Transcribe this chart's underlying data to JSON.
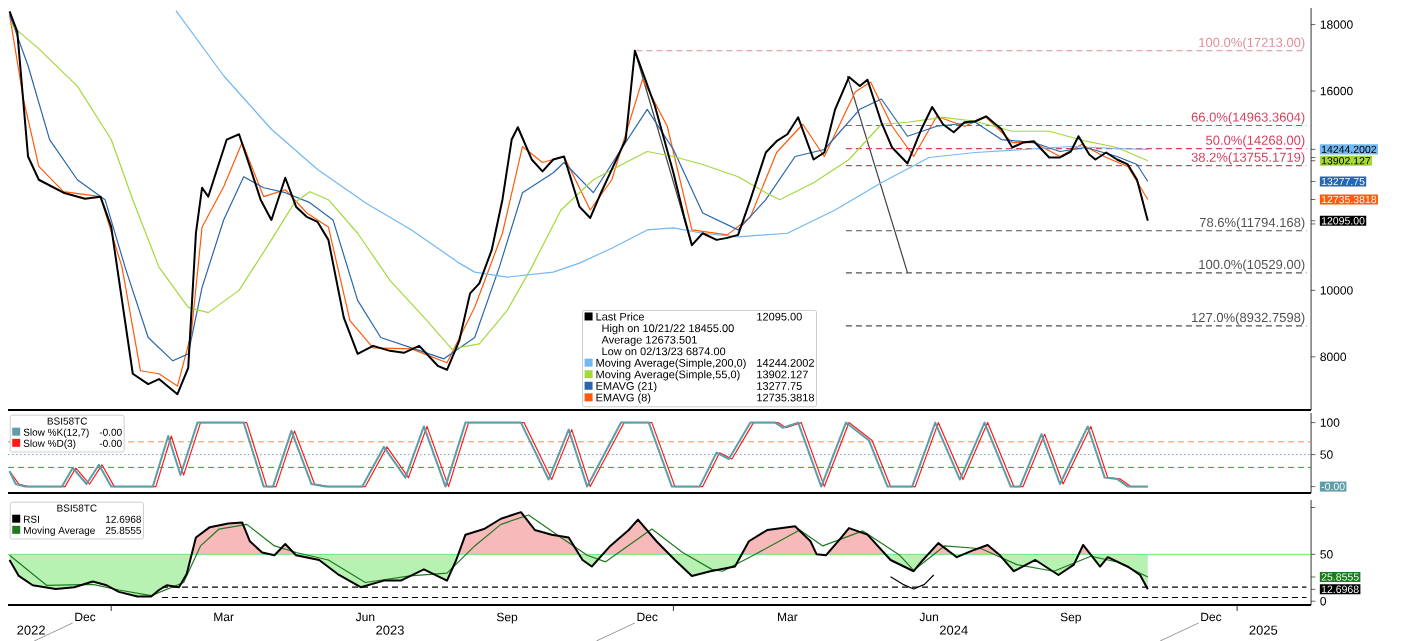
{
  "chart_data": [
    {
      "type": "line",
      "xlim": [
        "2022-10-26",
        "2025-02-18"
      ],
      "ylim": [
        6400,
        18500
      ],
      "tick_labels": "y",
      "legend": "bottom",
      "yticks": [
        8000,
        10000,
        {
          "value": 12000,
          "label": null
        },
        {
          "value": 12095,
          "label": "12095.00"
        },
        {
          "value": 12735.3818,
          "label": "12735.3818"
        },
        {
          "value": 13277.75,
          "label": "13277.75"
        },
        {
          "value": 13902.127,
          "label": "13902.127"
        },
        {
          "value": 14000,
          "label": null
        },
        {
          "value": 14244.2002,
          "label": "14244.2002"
        },
        16000,
        18000
      ],
      "annotations": [
        "High on 10/21/22 18455.00",
        "Average 12673.501",
        "Low on 02/13/23 6874.00",
        {
          "text": "100.0%(17213.00)",
          "x": "2025-02-15",
          "y": 17213
        },
        {
          "text": "66.0%(14963.3604)",
          "x": "2025-02-15",
          "y": 14963.3604
        },
        {
          "text": "50.0%(14268.00)",
          "x": "2025-02-15",
          "y": 14268
        },
        {
          "text": "38.2%(13755.1719)",
          "x": "2025-02-15",
          "y": 13755.1719
        },
        {
          "text": "78.6%(11794.168)",
          "x": "2025-02-15",
          "y": 11794.168
        },
        {
          "text": "100.0%(10529.00)",
          "x": "2025-02-15",
          "y": 10529
        },
        {
          "text": "127.0%(8932.7598)",
          "x": "2025-02-15",
          "y": 8932.7598
        }
      ],
      "series": [
        {
          "name": "Last Price",
          "color": "#000000",
          "x": [
            "2022-10-27",
            "2022-11-01",
            "2022-11-08",
            "2022-11-15",
            "2022-12-01",
            "2022-12-15",
            "2022-12-25",
            "2023-01-01",
            "2023-01-08",
            "2023-01-15",
            "2023-01-25",
            "2023-02-01",
            "2023-02-13",
            "2023-02-20",
            "2023-02-25",
            "2023-03-01",
            "2023-03-05",
            "2023-03-10",
            "2023-03-17",
            "2023-03-25",
            "2023-04-01",
            "2023-04-08",
            "2023-04-15",
            "2023-04-24",
            "2023-05-01",
            "2023-05-08",
            "2023-05-15",
            "2023-05-22",
            "2023-06-01",
            "2023-06-10",
            "2023-06-20",
            "2023-07-01",
            "2023-07-10",
            "2023-07-20",
            "2023-08-01",
            "2023-08-07",
            "2023-08-15",
            "2023-08-22",
            "2023-08-28",
            "2023-09-05",
            "2023-09-12",
            "2023-09-18",
            "2023-09-22",
            "2023-10-01",
            "2023-10-08",
            "2023-10-15",
            "2023-10-22",
            "2023-11-01",
            "2023-11-08",
            "2023-11-15",
            "2023-11-22",
            "2023-12-01",
            "2023-12-07",
            "2023-12-12",
            "2023-12-20",
            "2024-01-01",
            "2024-01-08",
            "2024-01-13",
            "2024-01-20",
            "2024-01-29",
            "2024-02-05",
            "2024-02-12",
            "2024-02-20",
            "2024-03-01",
            "2024-03-08",
            "2024-03-15",
            "2024-03-22",
            "2024-04-01",
            "2024-04-08",
            "2024-04-15",
            "2024-04-24",
            "2024-05-01",
            "2024-05-06",
            "2024-05-15",
            "2024-05-22",
            "2024-06-01",
            "2024-06-10",
            "2024-06-17",
            "2024-06-24",
            "2024-07-01",
            "2024-07-08",
            "2024-07-15",
            "2024-07-22",
            "2024-08-01",
            "2024-08-08",
            "2024-08-15",
            "2024-08-22",
            "2024-09-01",
            "2024-09-08",
            "2024-09-15",
            "2024-09-20",
            "2024-09-27",
            "2024-10-01",
            "2024-10-08",
            "2024-10-15",
            "2024-10-22",
            "2024-10-28",
            "2024-11-04"
          ],
          "values": [
            18400,
            17790,
            14030,
            13330,
            12940,
            12760,
            12820,
            11910,
            9700,
            7490,
            7180,
            7330,
            6874,
            7670,
            11720,
            13090,
            12820,
            13540,
            14540,
            14700,
            13730,
            12730,
            12120,
            13390,
            12520,
            12210,
            12060,
            11520,
            9180,
            8090,
            8330,
            8180,
            8120,
            8330,
            7730,
            7610,
            8490,
            9910,
            10210,
            11210,
            12730,
            14540,
            14910,
            13940,
            13580,
            13940,
            14030,
            12520,
            12180,
            12940,
            13640,
            14540,
            17213,
            16570,
            15550,
            13540,
            12210,
            11360,
            11720,
            11520,
            11580,
            11670,
            12730,
            14150,
            14490,
            14700,
            15210,
            13940,
            14150,
            15450,
            16420,
            16150,
            16340,
            15060,
            14300,
            13820,
            14850,
            15520,
            15000,
            14760,
            15060,
            15090,
            15240,
            14850,
            14300,
            14450,
            14490,
            14000,
            14000,
            14180,
            14640,
            14090,
            13940,
            14150,
            13940,
            13790,
            13330,
            12095
          ]
        },
        {
          "name": "Moving Average(Simple,200,0)",
          "color": "#72b8f2",
          "x": [
            "2023-02-12",
            "2023-03-15",
            "2023-04-15",
            "2023-05-15",
            "2023-06-15",
            "2023-07-15",
            "2023-08-15",
            "2023-08-25",
            "2023-09-15",
            "2023-10-15",
            "2023-11-01",
            "2023-11-22",
            "2023-12-15",
            "2024-01-01",
            "2024-01-20",
            "2024-02-12",
            "2024-03-15",
            "2024-04-15",
            "2024-05-15",
            "2024-06-15",
            "2024-07-15",
            "2024-08-15",
            "2024-09-15",
            "2024-10-15",
            "2024-11-04"
          ],
          "values": [
            18420,
            16460,
            14850,
            13640,
            12640,
            11820,
            10820,
            10550,
            10400,
            10550,
            10820,
            11270,
            11820,
            11880,
            11720,
            11610,
            11720,
            12420,
            13240,
            14000,
            14150,
            14240,
            14330,
            14270,
            14244.2002
          ]
        },
        {
          "name": "Moving Average(Simple,55,0)",
          "color": "#a3d93b",
          "x": [
            "2022-10-27",
            "2022-11-15",
            "2022-12-10",
            "2023-01-01",
            "2023-01-15",
            "2023-02-01",
            "2023-02-20",
            "2023-03-05",
            "2023-03-25",
            "2023-04-15",
            "2023-04-30",
            "2023-05-10",
            "2023-05-22",
            "2023-06-10",
            "2023-07-01",
            "2023-07-25",
            "2023-08-10",
            "2023-08-28",
            "2023-09-15",
            "2023-10-01",
            "2023-10-20",
            "2023-11-10",
            "2023-12-01",
            "2023-12-15",
            "2024-01-01",
            "2024-01-20",
            "2024-02-12",
            "2024-03-01",
            "2024-03-10",
            "2024-04-01",
            "2024-04-24",
            "2024-05-15",
            "2024-06-01",
            "2024-06-24",
            "2024-07-15",
            "2024-08-08",
            "2024-09-01",
            "2024-09-25",
            "2024-10-15",
            "2024-11-04"
          ],
          "values": [
            18030,
            17270,
            16150,
            14540,
            12730,
            10700,
            9490,
            9330,
            10000,
            11520,
            12640,
            12970,
            12730,
            11720,
            10300,
            9090,
            8240,
            8390,
            9390,
            10700,
            12420,
            13330,
            13850,
            14180,
            14030,
            13790,
            13420,
            12940,
            12730,
            13240,
            13940,
            15000,
            15060,
            15210,
            15090,
            14790,
            14790,
            14490,
            14300,
            13902.127
          ]
        },
        {
          "name": "EMAVG (21)",
          "color": "#2a66ad",
          "x": [
            "2022-10-27",
            "2022-11-08",
            "2022-11-22",
            "2022-12-10",
            "2022-12-28",
            "2023-01-10",
            "2023-01-25",
            "2023-02-10",
            "2023-02-20",
            "2023-03-01",
            "2023-03-15",
            "2023-03-28",
            "2023-04-10",
            "2023-04-24",
            "2023-05-10",
            "2023-05-25",
            "2023-06-10",
            "2023-06-25",
            "2023-07-15",
            "2023-08-05",
            "2023-08-25",
            "2023-09-10",
            "2023-09-25",
            "2023-10-15",
            "2023-10-22",
            "2023-11-10",
            "2023-11-28",
            "2023-12-15",
            "2024-01-01",
            "2024-01-20",
            "2024-02-12",
            "2024-03-01",
            "2024-03-20",
            "2024-04-08",
            "2024-05-01",
            "2024-05-15",
            "2024-06-01",
            "2024-06-20",
            "2024-07-15",
            "2024-08-01",
            "2024-08-22",
            "2024-09-08",
            "2024-09-25",
            "2024-10-15",
            "2024-10-28",
            "2024-11-04"
          ],
          "values": [
            18300,
            16760,
            14540,
            13330,
            12730,
            10700,
            8580,
            7880,
            8090,
            10090,
            12120,
            13420,
            13090,
            12940,
            12640,
            12120,
            9700,
            8580,
            8270,
            7940,
            8580,
            10700,
            12940,
            13540,
            13850,
            12940,
            14240,
            15450,
            14240,
            12330,
            11820,
            12730,
            14030,
            14240,
            15450,
            15760,
            14640,
            14940,
            15060,
            14540,
            14450,
            14180,
            14300,
            14030,
            13790,
            13277.75
          ]
        },
        {
          "name": "EMAVG (8)",
          "color": "#ff5a0a",
          "x": [
            "2022-10-27",
            "2022-11-05",
            "2022-11-15",
            "2022-12-01",
            "2022-12-25",
            "2023-01-08",
            "2023-01-20",
            "2023-02-01",
            "2023-02-13",
            "2023-02-22",
            "2023-03-01",
            "2023-03-15",
            "2023-03-27",
            "2023-04-10",
            "2023-04-24",
            "2023-05-08",
            "2023-05-22",
            "2023-06-05",
            "2023-06-20",
            "2023-07-15",
            "2023-08-07",
            "2023-08-25",
            "2023-09-12",
            "2023-09-25",
            "2023-10-08",
            "2023-10-22",
            "2023-11-08",
            "2023-11-22",
            "2023-12-12",
            "2023-12-28",
            "2024-01-13",
            "2024-02-05",
            "2024-02-20",
            "2024-03-08",
            "2024-03-25",
            "2024-04-08",
            "2024-04-28",
            "2024-05-08",
            "2024-05-22",
            "2024-06-05",
            "2024-06-20",
            "2024-07-08",
            "2024-07-22",
            "2024-08-08",
            "2024-08-22",
            "2024-09-08",
            "2024-09-22",
            "2024-10-08",
            "2024-10-22",
            "2024-11-04"
          ],
          "values": [
            18300,
            15760,
            13730,
            12970,
            12820,
            10700,
            7580,
            7490,
            7120,
            8700,
            11910,
            13120,
            14450,
            12820,
            13030,
            12330,
            11910,
            9090,
            8270,
            8240,
            7820,
            9490,
            11720,
            14330,
            13850,
            14030,
            12420,
            13330,
            16360,
            14940,
            11820,
            11670,
            12210,
            14150,
            15000,
            14030,
            15970,
            16270,
            14940,
            14030,
            15240,
            14940,
            15210,
            14450,
            14450,
            14030,
            14390,
            14000,
            13730,
            12735.3818
          ]
        },
        {
          "type": "line",
          "color": "#e08a96",
          "line_style": "dashed",
          "x": [
            "2023-12-08",
            "2025-02-15"
          ],
          "values": [
            17213,
            17213
          ]
        },
        {
          "type": "line",
          "color": "#d6405c",
          "line_style": "dashed",
          "x": [
            "2024-04-22",
            "2025-02-15"
          ],
          "values": [
            14963.3604,
            14963.3604
          ]
        },
        {
          "type": "line",
          "color": "#d6405c",
          "line_style": "dashed",
          "x": [
            "2024-04-22",
            "2025-02-15"
          ],
          "values": [
            14268,
            14268
          ]
        },
        {
          "type": "line",
          "color": "#d6405c",
          "line_style": "dashed",
          "x": [
            "2024-04-22",
            "2025-02-15"
          ],
          "values": [
            13755.1719,
            13755.1719
          ]
        },
        {
          "type": "line",
          "color": "#505050",
          "line_style": "dashed",
          "x": [
            "2024-04-22",
            "2025-02-15"
          ],
          "values": [
            11794.168,
            11794.168
          ]
        },
        {
          "type": "line",
          "color": "#505050",
          "line_style": "dashed",
          "x": [
            "2024-04-22",
            "2025-02-15"
          ],
          "values": [
            10529,
            10529
          ]
        },
        {
          "type": "line",
          "color": "#505050",
          "line_style": "dashed",
          "x": [
            "2024-04-22",
            "2025-02-15"
          ],
          "values": [
            8932.7598,
            8932.7598
          ]
        },
        {
          "type": "line",
          "color": "#404040",
          "x": [
            "2023-12-07",
            "2024-01-13"
          ],
          "values": [
            17213,
            11360
          ]
        },
        {
          "type": "line",
          "color": "#404040",
          "x": [
            "2024-04-23",
            "2024-06-01"
          ],
          "values": [
            16450,
            10529
          ]
        }
      ]
    },
    {
      "type": "line",
      "xlim": [
        "2022-10-26",
        "2025-02-18"
      ],
      "ylim": [
        -10,
        115
      ],
      "tick_labels": "y",
      "legend": "top left",
      "legend_title": "BSI58TC",
      "yticks": [
        {
          "value": 0,
          "label": "-0.00"
        },
        50,
        100
      ],
      "ref_lines": [
        {
          "axis": "y",
          "value": 70,
          "color": "#f28c5a",
          "line_style": "dashed"
        },
        {
          "axis": "y",
          "value": 50,
          "color": "#6aa8c0",
          "line_style": "dotted"
        },
        {
          "axis": "y",
          "value": 30,
          "color": "#2ca02c",
          "line_style": "dashed"
        }
      ],
      "series": [
        {
          "name": "Slow %K(12,7)",
          "color": "#5f9ea8",
          "x": [
            "2022-10-27",
            "2022-10-31",
            "2022-11-06",
            "2022-11-30",
            "2022-12-07",
            "2022-12-16",
            "2022-12-24",
            "2023-01-01",
            "2023-01-28",
            "2023-02-07",
            "2023-02-15",
            "2023-02-26",
            "2023-03-28",
            "2023-04-10",
            "2023-04-16",
            "2023-04-28",
            "2023-05-11",
            "2023-05-20",
            "2023-06-13",
            "2023-06-27",
            "2023-07-11",
            "2023-07-23",
            "2023-08-06",
            "2023-08-19",
            "2023-09-24",
            "2023-10-12",
            "2023-10-25",
            "2023-11-06",
            "2023-11-28",
            "2023-12-16",
            "2023-12-31",
            "2024-01-18",
            "2024-01-29",
            "2024-02-06",
            "2024-02-20",
            "2024-03-07",
            "2024-03-12",
            "2024-03-22",
            "2024-04-06",
            "2024-04-22",
            "2024-05-07",
            "2024-05-19",
            "2024-06-04",
            "2024-06-19",
            "2024-07-05",
            "2024-07-21",
            "2024-08-07",
            "2024-08-13",
            "2024-08-27",
            "2024-09-08",
            "2024-09-26",
            "2024-10-07",
            "2024-10-15",
            "2024-10-22",
            "2024-11-04"
          ],
          "values": [
            24,
            4,
            0,
            0,
            29,
            4,
            34,
            0,
            0,
            79,
            18,
            100,
            100,
            0,
            0,
            87,
            4,
            0,
            0,
            62,
            14,
            94,
            0,
            100,
            100,
            11,
            89,
            0,
            100,
            100,
            0,
            0,
            53,
            43,
            100,
            100,
            92,
            100,
            0,
            100,
            72,
            0,
            0,
            100,
            11,
            100,
            0,
            0,
            82,
            4,
            94,
            14,
            12,
            0,
            0
          ]
        },
        {
          "name": "Slow %D(3)",
          "color": "#ff1a1a",
          "x": [
            "2022-10-27",
            "2022-11-02",
            "2022-11-08",
            "2022-12-02",
            "2022-12-09",
            "2022-12-18",
            "2022-12-26",
            "2023-01-03",
            "2023-01-30",
            "2023-02-09",
            "2023-02-17",
            "2023-02-28",
            "2023-03-30",
            "2023-04-12",
            "2023-04-18",
            "2023-04-30",
            "2023-05-13",
            "2023-05-22",
            "2023-06-15",
            "2023-06-29",
            "2023-07-13",
            "2023-07-25",
            "2023-08-08",
            "2023-08-21",
            "2023-09-26",
            "2023-10-14",
            "2023-10-27",
            "2023-11-08",
            "2023-11-30",
            "2023-12-18",
            "2024-01-02",
            "2024-01-20",
            "2024-01-31",
            "2024-02-08",
            "2024-02-22",
            "2024-03-09",
            "2024-03-14",
            "2024-03-24",
            "2024-04-08",
            "2024-04-24",
            "2024-05-09",
            "2024-05-21",
            "2024-06-06",
            "2024-06-21",
            "2024-07-07",
            "2024-07-23",
            "2024-08-09",
            "2024-08-15",
            "2024-08-29",
            "2024-09-10",
            "2024-09-28",
            "2024-10-09",
            "2024-10-17",
            "2024-10-24",
            "2024-11-04"
          ],
          "values": [
            24,
            4,
            0,
            0,
            29,
            4,
            34,
            0,
            0,
            79,
            18,
            100,
            100,
            0,
            0,
            87,
            4,
            0,
            0,
            62,
            14,
            94,
            0,
            100,
            100,
            11,
            89,
            0,
            100,
            100,
            0,
            0,
            53,
            43,
            100,
            100,
            92,
            100,
            0,
            100,
            72,
            0,
            0,
            100,
            11,
            100,
            0,
            0,
            82,
            4,
            94,
            14,
            12,
            0,
            0
          ]
        }
      ]
    },
    {
      "type": "line",
      "xlim": [
        "2022-10-26",
        "2025-02-18"
      ],
      "ylim": [
        -4,
        108
      ],
      "legend": "top left",
      "legend_title": "BSI58TC",
      "yticks": [
        0,
        {
          "value": 12.6968,
          "label": "12.6968"
        },
        {
          "value": 25.8555,
          "label": "25.8555"
        },
        50,
        {
          "value": 100,
          "label": null
        }
      ],
      "xticks": [
        {
          "value": "2022-12-15",
          "label": "Dec"
        },
        {
          "value": "2023-03-15",
          "label": "Mar"
        },
        {
          "value": "2023-06-15",
          "label": "Jun"
        },
        {
          "value": "2023-09-15",
          "label": "Sep"
        },
        {
          "value": "2023-12-15",
          "label": "Dec"
        },
        {
          "value": "2024-03-15",
          "label": "Mar"
        },
        {
          "value": "2024-06-15",
          "label": "Jun"
        },
        {
          "value": "2024-09-15",
          "label": "Sep"
        },
        {
          "value": "2024-12-15",
          "label": "Dec"
        }
      ],
      "x2lim": [
        "2022-10-26",
        "2025-02-18"
      ],
      "x2ticks": [
        {
          "value": "2022-11-10",
          "label": "2022"
        },
        {
          "value": "2023-01-01",
          "label": null
        },
        {
          "value": "2023-07-01",
          "label": "2023"
        },
        {
          "value": "2024-01-01",
          "label": null
        },
        {
          "value": "2024-07-01",
          "label": "2024"
        },
        {
          "value": "2025-01-01",
          "label": null
        },
        {
          "value": "2025-01-18",
          "label": "2025"
        }
      ],
      "ref_lines": [
        {
          "axis": "y",
          "value": 50,
          "color": "#6ee86e"
        }
      ],
      "series": [
        {
          "name": "RSI",
          "color": "#000000",
          "x": [
            "2022-10-27",
            "2022-11-02",
            "2022-11-11",
            "2022-11-26",
            "2022-12-08",
            "2022-12-20",
            "2022-12-29",
            "2023-01-06",
            "2023-01-18",
            "2023-01-27",
            "2023-02-01",
            "2023-02-06",
            "2023-02-14",
            "2023-02-19",
            "2023-02-25",
            "2023-03-06",
            "2023-03-18",
            "2023-03-27",
            "2023-04-01",
            "2023-04-09",
            "2023-04-17",
            "2023-04-24",
            "2023-05-01",
            "2023-05-16",
            "2023-05-28",
            "2023-06-12",
            "2023-06-27",
            "2023-07-08",
            "2023-07-23",
            "2023-08-07",
            "2023-08-13",
            "2023-08-19",
            "2023-08-31",
            "2023-09-11",
            "2023-09-24",
            "2023-10-03",
            "2023-10-14",
            "2023-10-25",
            "2023-11-03",
            "2023-11-09",
            "2023-11-21",
            "2023-12-03",
            "2023-12-09",
            "2023-12-21",
            "2024-01-02",
            "2024-01-13",
            "2024-01-25",
            "2024-02-10",
            "2024-02-19",
            "2024-03-02",
            "2024-03-20",
            "2024-03-30",
            "2024-04-03",
            "2024-04-09",
            "2024-04-18",
            "2024-04-24",
            "2024-05-06",
            "2024-05-21",
            "2024-06-05",
            "2024-06-11",
            "2024-06-21",
            "2024-07-03",
            "2024-07-13",
            "2024-07-23",
            "2024-07-31",
            "2024-08-09",
            "2024-08-23",
            "2024-09-07",
            "2024-09-17",
            "2024-09-23",
            "2024-10-04",
            "2024-10-09",
            "2024-10-22",
            "2024-10-30",
            "2024-11-04"
          ],
          "values": [
            44,
            27,
            17,
            13,
            15,
            21,
            17,
            10,
            5,
            5,
            12,
            17,
            15,
            29,
            68,
            79,
            83,
            84,
            64,
            52,
            49,
            61,
            49,
            44,
            29,
            15,
            22,
            22,
            34,
            22,
            44,
            71,
            77,
            88,
            95,
            76,
            71,
            68,
            44,
            37,
            59,
            76,
            87,
            64,
            44,
            27,
            32,
            37,
            64,
            76,
            80,
            64,
            50,
            49,
            66,
            78,
            71,
            44,
            32,
            44,
            62,
            47,
            54,
            60,
            49,
            32,
            44,
            28,
            39,
            60,
            37,
            47,
            37,
            28,
            12.6968
          ]
        },
        {
          "name": "Moving Average",
          "color": "#1f7a1f",
          "x": [
            "2022-10-27",
            "2022-11-20",
            "2022-12-20",
            "2023-01-06",
            "2023-01-27",
            "2023-02-17",
            "2023-02-28",
            "2023-03-12",
            "2023-03-30",
            "2023-04-17",
            "2023-05-01",
            "2023-05-22",
            "2023-06-15",
            "2023-07-14",
            "2023-08-07",
            "2023-08-25",
            "2023-09-11",
            "2023-09-29",
            "2023-10-20",
            "2023-11-06",
            "2023-11-18",
            "2023-12-18",
            "2024-01-07",
            "2024-01-26",
            "2024-02-02",
            "2024-02-22",
            "2024-03-23",
            "2024-04-07",
            "2024-05-03",
            "2024-05-27",
            "2024-06-05",
            "2024-06-25",
            "2024-07-19",
            "2024-08-11",
            "2024-09-04",
            "2024-09-28",
            "2024-10-15",
            "2024-11-04"
          ],
          "values": [
            49,
            17,
            18,
            12,
            6,
            20,
            59,
            77,
            82,
            59,
            52,
            44,
            20,
            27,
            30,
            59,
            82,
            92,
            68,
            49,
            42,
            77,
            52,
            34,
            32,
            49,
            76,
            59,
            75,
            49,
            33,
            59,
            56,
            39,
            32,
            48,
            42,
            25.8555
          ]
        },
        {
          "type": "line",
          "color": "#000000",
          "line_style": "dashed",
          "x": [
            "2023-02-03",
            "2025-02-15"
          ],
          "values": [
            15,
            15
          ]
        },
        {
          "type": "line",
          "color": "#000000",
          "line_style": "dashed",
          "x": [
            "2023-02-03",
            "2025-02-15"
          ],
          "values": [
            4,
            4
          ]
        },
        {
          "type": "line",
          "color": "#000000",
          "x": [
            "2024-05-21",
            "2024-05-29",
            "2024-06-05",
            "2024-06-12",
            "2024-06-18"
          ],
          "values": [
            26,
            18,
            13,
            18,
            28
          ]
        }
      ]
    }
  ]
}
